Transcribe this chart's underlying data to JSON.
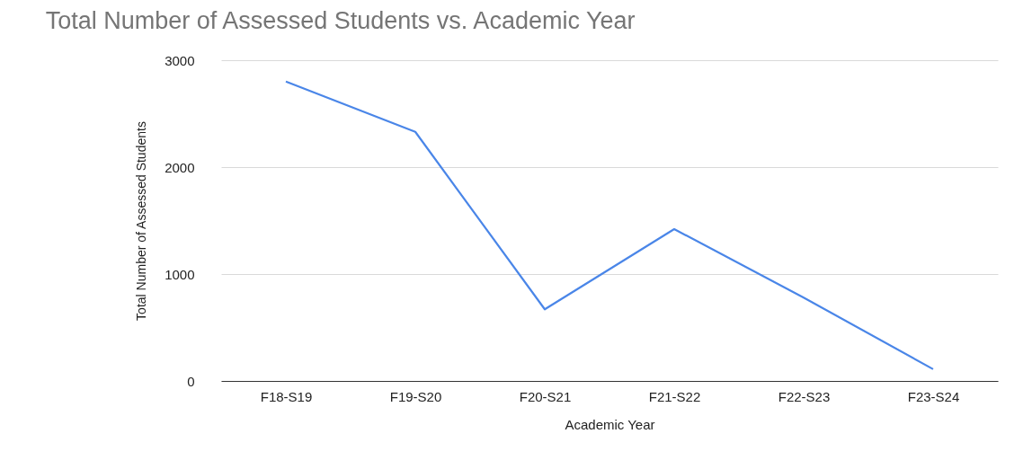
{
  "chart_data": {
    "type": "line",
    "title": "Total Number of Assessed Students vs. Academic Year",
    "xlabel": "Academic Year",
    "ylabel": "Total Number of Assessed Students",
    "categories": [
      "F18-S19",
      "F19-S20",
      "F20-S21",
      "F21-S22",
      "F22-S23",
      "F23-S24"
    ],
    "series": [
      {
        "color": "#4a86e8",
        "values": [
          2800,
          2330,
          670,
          1420,
          780,
          110
        ]
      }
    ],
    "ylim": [
      0,
      3000
    ],
    "yticks": [
      0,
      1000,
      2000,
      3000
    ],
    "grid": "y",
    "legend": false,
    "marker": "none",
    "line_style": "solid"
  }
}
